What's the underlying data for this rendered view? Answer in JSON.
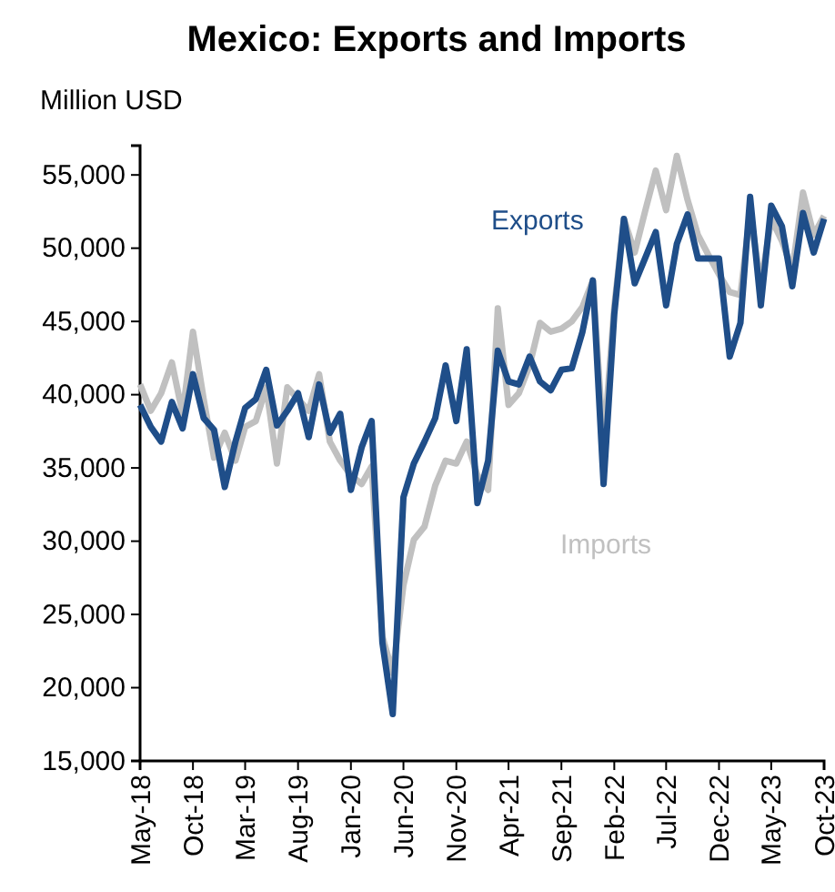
{
  "chart_data": {
    "type": "line",
    "title": "Mexico: Exports and Imports",
    "ylabel": "Million USD",
    "x": [
      "2018-05",
      "2018-06",
      "2018-07",
      "2018-08",
      "2018-09",
      "2018-10",
      "2018-11",
      "2018-12",
      "2019-01",
      "2019-02",
      "2019-03",
      "2019-04",
      "2019-05",
      "2019-06",
      "2019-07",
      "2019-08",
      "2019-09",
      "2019-10",
      "2019-11",
      "2019-12",
      "2020-01",
      "2020-02",
      "2020-03",
      "2020-04",
      "2020-05",
      "2020-06",
      "2020-07",
      "2020-08",
      "2020-09",
      "2020-10",
      "2020-11",
      "2020-12",
      "2021-01",
      "2021-02",
      "2021-03",
      "2021-04",
      "2021-05",
      "2021-06",
      "2021-07",
      "2021-08",
      "2021-09",
      "2021-10",
      "2021-11",
      "2021-12",
      "2022-01",
      "2022-02",
      "2022-03",
      "2022-04",
      "2022-05",
      "2022-06",
      "2022-07",
      "2022-08",
      "2022-09",
      "2022-10",
      "2022-11",
      "2022-12",
      "2023-01",
      "2023-02",
      "2023-03",
      "2023-04",
      "2023-05",
      "2023-06",
      "2023-07",
      "2023-08",
      "2023-09",
      "2023-10"
    ],
    "series": [
      {
        "name": "Imports",
        "color": "#c0c0c0",
        "values": [
          40700,
          38900,
          40100,
          42200,
          38700,
          44300,
          39700,
          35700,
          37400,
          35500,
          37800,
          38200,
          40500,
          35300,
          40500,
          39700,
          38900,
          41400,
          36800,
          35500,
          34500,
          33900,
          35100,
          23500,
          21000,
          27000,
          30100,
          31000,
          33800,
          35500,
          35300,
          36800,
          34500,
          33500,
          45900,
          39300,
          40100,
          42000,
          44900,
          44300,
          44500,
          45000,
          46000,
          47800,
          36500,
          46000,
          52000,
          49700,
          52500,
          55300,
          52600,
          56300,
          53300,
          50900,
          49500,
          48200,
          47000,
          46800,
          52500,
          47500,
          52000,
          50500,
          48500,
          53800,
          50900,
          52200
        ]
      },
      {
        "name": "Exports",
        "color": "#1f4e89",
        "values": [
          39300,
          37800,
          36800,
          39500,
          37700,
          41400,
          38400,
          37600,
          33700,
          36800,
          39100,
          39700,
          41700,
          37900,
          38900,
          40100,
          37100,
          40700,
          37400,
          38700,
          33500,
          36400,
          38200,
          23100,
          18200,
          33000,
          35300,
          36800,
          38400,
          42000,
          38200,
          43100,
          32600,
          35500,
          43000,
          40900,
          40700,
          42600,
          40900,
          40300,
          41700,
          41800,
          44300,
          47800,
          33900,
          45500,
          52000,
          47600,
          49300,
          51100,
          46100,
          50300,
          52300,
          49300,
          49300,
          49300,
          42600,
          44900,
          53500,
          46100,
          52900,
          51500,
          47400,
          52400,
          49700,
          52000
        ]
      }
    ],
    "xlim": [
      "2018-05",
      "2023-10"
    ],
    "xticks": [
      {
        "value": "2018-05",
        "label": "May-18"
      },
      {
        "value": "2018-10",
        "label": "Oct-18"
      },
      {
        "value": "2019-03",
        "label": "Mar-19"
      },
      {
        "value": "2019-08",
        "label": "Aug-19"
      },
      {
        "value": "2020-01",
        "label": "Jan-20"
      },
      {
        "value": "2020-06",
        "label": "Jun-20"
      },
      {
        "value": "2020-11",
        "label": "Nov-20"
      },
      {
        "value": "2021-04",
        "label": "Apr-21"
      },
      {
        "value": "2021-09",
        "label": "Sep-21"
      },
      {
        "value": "2022-02",
        "label": "Feb-22"
      },
      {
        "value": "2022-07",
        "label": "Jul-22"
      },
      {
        "value": "2022-12",
        "label": "Dec-22"
      },
      {
        "value": "2023-05",
        "label": "May-23"
      },
      {
        "value": "2023-10",
        "label": "Oct-23"
      }
    ],
    "ylim": [
      15000,
      57000
    ],
    "yticks": [
      {
        "value": 15000,
        "label": "15,000"
      },
      {
        "value": 20000,
        "label": "20,000"
      },
      {
        "value": 25000,
        "label": "25,000"
      },
      {
        "value": 30000,
        "label": "30,000"
      },
      {
        "value": 35000,
        "label": "35,000"
      },
      {
        "value": 40000,
        "label": "40,000"
      },
      {
        "value": 45000,
        "label": "45,000"
      },
      {
        "value": 50000,
        "label": "50,000"
      },
      {
        "value": 55000,
        "label": "55,000"
      }
    ],
    "grid": false,
    "legend": false
  }
}
